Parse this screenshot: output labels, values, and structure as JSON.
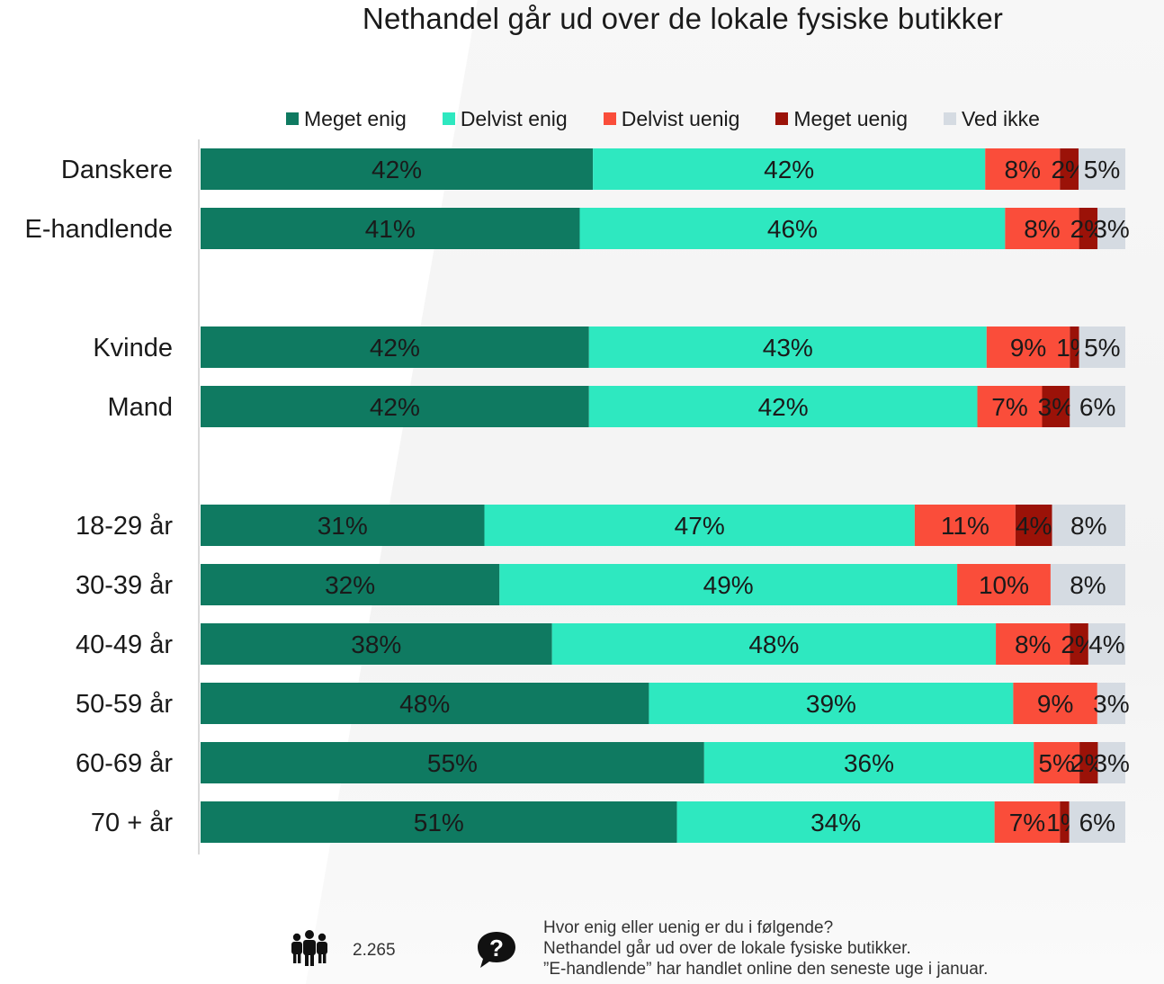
{
  "colors": {
    "meget_enig": "#0f7a61",
    "delvist_enig": "#2ee8c0",
    "delvist_uenig": "#fa4d3a",
    "meget_uenig": "#9b1208",
    "ved_ikke": "#d5dbe2"
  },
  "chart_data": {
    "type": "bar",
    "orientation": "horizontal-stacked-100",
    "title": "Nethandel går ud over de lokale fysiske butikker",
    "legend_position": "top",
    "series": [
      {
        "name": "Meget enig",
        "color": "#0f7a61",
        "values": [
          42,
          41,
          42,
          42,
          31,
          32,
          38,
          48,
          55,
          51
        ]
      },
      {
        "name": "Delvist enig",
        "color": "#2ee8c0",
        "values": [
          42,
          46,
          43,
          42,
          47,
          49,
          48,
          39,
          36,
          34
        ]
      },
      {
        "name": "Delvist uenig",
        "color": "#fa4d3a",
        "values": [
          8,
          8,
          9,
          7,
          11,
          10,
          8,
          9,
          5,
          7
        ]
      },
      {
        "name": "Meget uenig",
        "color": "#9b1208",
        "values": [
          2,
          2,
          1,
          3,
          4,
          0,
          2,
          0,
          2,
          1
        ]
      },
      {
        "name": "Ved ikke",
        "color": "#d5dbe2",
        "values": [
          5,
          3,
          5,
          6,
          8,
          8,
          4,
          3,
          3,
          6
        ]
      }
    ],
    "categories": [
      "Danskere",
      "E-handlende",
      "Kvinde",
      "Mand",
      "18-29 år",
      "30-39 år",
      "40-49 år",
      "50-59 år",
      "60-69 år",
      "70 + år"
    ],
    "xlim": [
      0,
      100
    ],
    "grid": false
  },
  "footer": {
    "sample_size": "2.265",
    "people_icon": "people-icon",
    "question_icon": "question-bubble-icon",
    "question_lines": [
      "Hvor enig eller uenig er du i følgende?",
      "Nethandel går ud over de lokale fysiske butikker.",
      "”E-handlende” har handlet online den seneste uge i januar."
    ]
  }
}
